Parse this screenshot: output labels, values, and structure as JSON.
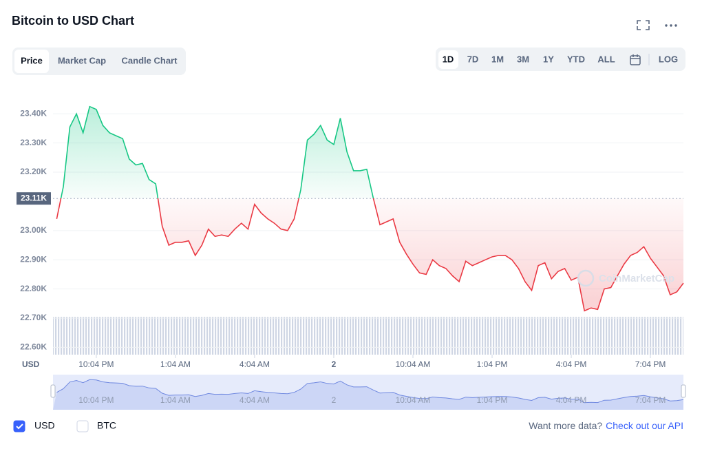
{
  "header": {
    "title": "Bitcoin to USD Chart"
  },
  "tabs": [
    "Price",
    "Market Cap",
    "Candle Chart"
  ],
  "ranges": [
    "1D",
    "7D",
    "1M",
    "3M",
    "1Y",
    "YTD",
    "ALL"
  ],
  "log_button": "LOG",
  "currencies": [
    {
      "label": "USD",
      "checked": true
    },
    {
      "label": "BTC",
      "checked": false
    }
  ],
  "footer": {
    "text": "Want more data?",
    "link": "Check out our API"
  },
  "watermark": "CoinMarketCap",
  "chart_data": {
    "type": "line",
    "y_axis_corner_label": "USD",
    "baseline": {
      "value": 23110,
      "label": "23.11K"
    },
    "up_color": "#16c784",
    "down_color": "#ea3943",
    "xlim": [
      -1.64,
      22.25
    ],
    "xticks": [
      {
        "value": 0,
        "label": "10:04 PM"
      },
      {
        "value": 3,
        "label": "1:04 AM"
      },
      {
        "value": 6,
        "label": "4:04 AM"
      },
      {
        "value": 9,
        "label": "2"
      },
      {
        "value": 12,
        "label": "10:04 AM"
      },
      {
        "value": 15,
        "label": "1:04 PM"
      },
      {
        "value": 18,
        "label": "4:04 PM"
      },
      {
        "value": 21,
        "label": "7:04 PM"
      }
    ],
    "ylim": [
      22575,
      23495
    ],
    "yticks": [
      {
        "value": 22600,
        "label": "22.60K"
      },
      {
        "value": 22700,
        "label": "22.70K"
      },
      {
        "value": 22800,
        "label": "22.80K"
      },
      {
        "value": 22900,
        "label": "22.90K"
      },
      {
        "value": 23000,
        "label": "23.00K"
      },
      {
        "value": 23200,
        "label": "23.20K"
      },
      {
        "value": 23300,
        "label": "23.30K"
      },
      {
        "value": 23400,
        "label": "23.40K"
      }
    ],
    "grid": true,
    "x": [
      -1.5,
      -1.25,
      -1,
      -0.75,
      -0.5,
      -0.25,
      0,
      0.25,
      0.5,
      0.75,
      1,
      1.25,
      1.5,
      1.75,
      2,
      2.25,
      2.5,
      2.75,
      3,
      3.25,
      3.5,
      3.75,
      4,
      4.25,
      4.5,
      4.75,
      5,
      5.25,
      5.5,
      5.75,
      6,
      6.25,
      6.5,
      6.75,
      7,
      7.25,
      7.5,
      7.75,
      8,
      8.25,
      8.5,
      8.75,
      9,
      9.25,
      9.5,
      9.75,
      10,
      10.25,
      10.5,
      10.75,
      11,
      11.25,
      11.5,
      11.75,
      12,
      12.25,
      12.5,
      12.75,
      13,
      13.25,
      13.5,
      13.75,
      14,
      14.25,
      14.5,
      14.75,
      15,
      15.25,
      15.5,
      15.75,
      16,
      16.25,
      16.5,
      16.75,
      17,
      17.25,
      17.5,
      17.75,
      18,
      18.25,
      18.5,
      18.75,
      19,
      19.25,
      19.5,
      19.75,
      20,
      20.25,
      20.5,
      20.75,
      21,
      21.25,
      21.5,
      21.75,
      22,
      22.25
    ],
    "values": [
      23040,
      23150,
      23355,
      23400,
      23335,
      23425,
      23415,
      23360,
      23335,
      23325,
      23315,
      23245,
      23225,
      23230,
      23175,
      23160,
      23015,
      22950,
      22960,
      22960,
      22965,
      22915,
      22950,
      23005,
      22980,
      22985,
      22980,
      23005,
      23025,
      23005,
      23090,
      23060,
      23040,
      23025,
      23005,
      23000,
      23040,
      23140,
      23310,
      23330,
      23360,
      23310,
      23295,
      23385,
      23270,
      23205,
      23205,
      23210,
      23110,
      23020,
      23030,
      23040,
      22960,
      22920,
      22885,
      22855,
      22850,
      22900,
      22880,
      22870,
      22845,
      22825,
      22895,
      22880,
      22890,
      22900,
      22910,
      22915,
      22915,
      22900,
      22870,
      22825,
      22795,
      22880,
      22890,
      22835,
      22860,
      22870,
      22830,
      22840,
      22725,
      22735,
      22730,
      22800,
      22805,
      22845,
      22885,
      22915,
      22925,
      22945,
      22905,
      22875,
      22845,
      22780,
      22790,
      22820
    ]
  }
}
